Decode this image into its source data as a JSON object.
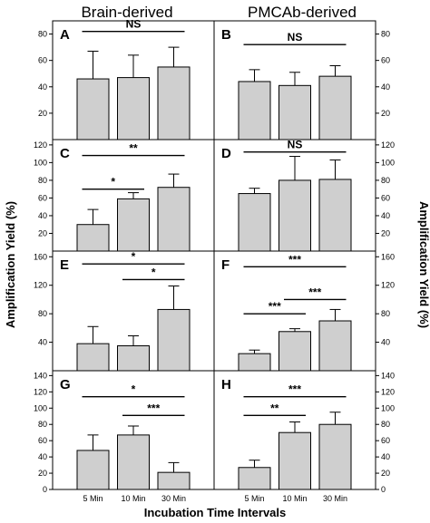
{
  "figure": {
    "column_titles": [
      "Brain-derived",
      "PMCAb-derived"
    ],
    "y_axis_label": "Amplification Yield (%)",
    "x_axis_label": "Incubation Time Intervals"
  },
  "chart_data": [
    {
      "type": "bar",
      "panel": "A",
      "categories": [
        "5 Min",
        "10 Min",
        "30 Min"
      ],
      "values": [
        46,
        47,
        55
      ],
      "errors": [
        21,
        17,
        15
      ],
      "ylim": [
        0,
        90
      ],
      "yticks": [
        20,
        40,
        60,
        80
      ],
      "significance": [
        {
          "from": 0,
          "to": 2,
          "label": "NS",
          "y": 82
        }
      ]
    },
    {
      "type": "bar",
      "panel": "B",
      "categories": [
        "5 Min",
        "10 Min",
        "30 Min"
      ],
      "values": [
        44,
        41,
        48
      ],
      "errors": [
        9,
        10,
        8
      ],
      "ylim": [
        0,
        90
      ],
      "yticks": [
        20,
        40,
        60,
        80
      ],
      "significance": [
        {
          "from": 0,
          "to": 2,
          "label": "NS",
          "y": 72
        }
      ]
    },
    {
      "type": "bar",
      "panel": "C",
      "categories": [
        "5 Min",
        "10 Min",
        "30 Min"
      ],
      "values": [
        30,
        59,
        72
      ],
      "errors": [
        17,
        7,
        15
      ],
      "ylim": [
        0,
        126
      ],
      "yticks": [
        20,
        40,
        60,
        80,
        100,
        120
      ],
      "significance": [
        {
          "from": 0,
          "to": 1,
          "label": "*",
          "y": 70
        },
        {
          "from": 0,
          "to": 2,
          "label": "**",
          "y": 108
        }
      ]
    },
    {
      "type": "bar",
      "panel": "D",
      "categories": [
        "5 Min",
        "10 Min",
        "30 Min"
      ],
      "values": [
        65,
        80,
        81
      ],
      "errors": [
        6,
        27,
        22
      ],
      "ylim": [
        0,
        126
      ],
      "yticks": [
        20,
        40,
        60,
        80,
        100,
        120
      ],
      "significance": [
        {
          "from": 0,
          "to": 2,
          "label": "NS",
          "y": 112
        }
      ]
    },
    {
      "type": "bar",
      "panel": "E",
      "categories": [
        "5 Min",
        "10 Min",
        "30 Min"
      ],
      "values": [
        38,
        35,
        86
      ],
      "errors": [
        24,
        14,
        33
      ],
      "ylim": [
        0,
        168
      ],
      "yticks": [
        40,
        80,
        120,
        160
      ],
      "significance": [
        {
          "from": 0,
          "to": 2,
          "label": "*",
          "y": 150
        },
        {
          "from": 1,
          "to": 2,
          "label": "*",
          "y": 128
        }
      ]
    },
    {
      "type": "bar",
      "panel": "F",
      "categories": [
        "5 Min",
        "10 Min",
        "30 Min"
      ],
      "values": [
        24,
        55,
        70
      ],
      "errors": [
        5,
        4,
        16
      ],
      "ylim": [
        0,
        168
      ],
      "yticks": [
        40,
        80,
        120,
        160
      ],
      "significance": [
        {
          "from": 0,
          "to": 2,
          "label": "***",
          "y": 146
        },
        {
          "from": 0,
          "to": 1,
          "label": "***",
          "y": 80
        },
        {
          "from": 1,
          "to": 2,
          "label": "***",
          "y": 100
        }
      ]
    },
    {
      "type": "bar",
      "panel": "G",
      "categories": [
        "5 Min",
        "10 Min",
        "30 Min"
      ],
      "values": [
        48,
        67,
        21
      ],
      "errors": [
        19,
        11,
        12
      ],
      "ylim": [
        0,
        146
      ],
      "yticks": [
        0,
        20,
        40,
        60,
        80,
        100,
        120,
        140
      ],
      "significance": [
        {
          "from": 0,
          "to": 2,
          "label": "*",
          "y": 114
        },
        {
          "from": 1,
          "to": 2,
          "label": "***",
          "y": 91
        }
      ]
    },
    {
      "type": "bar",
      "panel": "H",
      "categories": [
        "5 Min",
        "10 Min",
        "30 Min"
      ],
      "values": [
        27,
        70,
        80
      ],
      "errors": [
        9,
        13,
        15
      ],
      "ylim": [
        0,
        146
      ],
      "yticks": [
        0,
        20,
        40,
        60,
        80,
        100,
        120,
        140
      ],
      "significance": [
        {
          "from": 0,
          "to": 2,
          "label": "***",
          "y": 114
        },
        {
          "from": 0,
          "to": 1,
          "label": "**",
          "y": 91
        }
      ]
    }
  ]
}
